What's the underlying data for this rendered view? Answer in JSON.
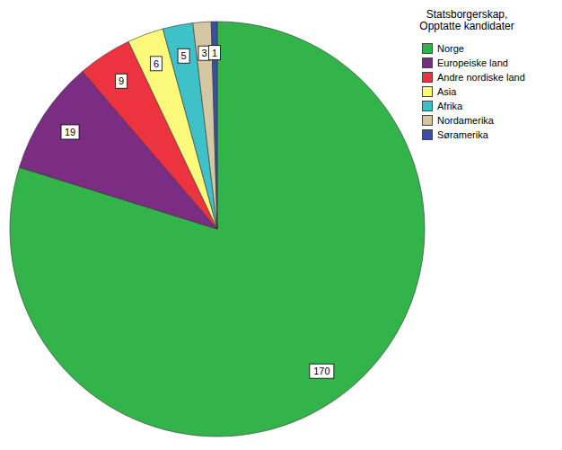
{
  "chart_data": {
    "type": "pie",
    "title": "Statsborgerskap, Opptatte kandidater",
    "categories": [
      "Norge",
      "Europeiske land",
      "Andre nordiske land",
      "Asia",
      "Afrika",
      "Nordamerika",
      "Søramerika"
    ],
    "values": [
      170,
      19,
      9,
      6,
      5,
      3,
      1
    ],
    "colors": [
      "#33b44a",
      "#7b2c83",
      "#ee3340",
      "#fdf97a",
      "#3fc1c9",
      "#d3c8a2",
      "#3a4fa3"
    ],
    "data_labels": true,
    "legend": "right"
  }
}
